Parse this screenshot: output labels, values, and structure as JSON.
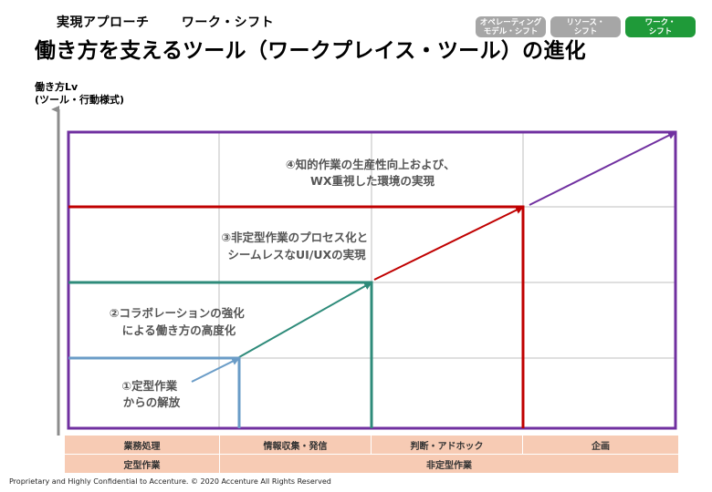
{
  "header": {
    "section": "実現アプローチ",
    "subsection": "ワーク・シフト",
    "title": "働き方を支えるツール（ワークプレイス・ツール）の進化"
  },
  "nav_pills": [
    {
      "label": "オペレーティング\nモデル・シフト",
      "active": false
    },
    {
      "label": "リソース・\nシフト",
      "active": false
    },
    {
      "label": "ワーク・\nシフト",
      "active": true
    }
  ],
  "y_axis": {
    "line1": "働き方Lv",
    "line2": "(ツール・行動様式)"
  },
  "categories": {
    "tasks": [
      "業務処理",
      "情報収集・発信",
      "判断・アドホック",
      "企画"
    ],
    "types": [
      "定型作業",
      "非定型作業"
    ]
  },
  "stages": [
    {
      "id": 1,
      "line1": "①定型作業",
      "line2": "からの解放",
      "color": "#6a9cc7"
    },
    {
      "id": 2,
      "line1": "②コラボレーションの強化",
      "line2": "による働き方の高度化",
      "color": "#2e8b7a"
    },
    {
      "id": 3,
      "line1": "③非定型作業のプロセス化と",
      "line2": "シームレスなUI/UXの実現",
      "color": "#c00000"
    },
    {
      "id": 4,
      "line1": "④知的作業の生産性向上および、",
      "line2": "WX重視した環境の実現",
      "color": "#7030a0"
    }
  ],
  "footer": "Proprietary and Highly Confidential to Accenture.   © 2020 Accenture All Rights Reserved",
  "colors": {
    "grid": "#bfbfbf",
    "axis": "#8c8c8c",
    "accent": "#1f9a39",
    "bar": "#f7cbb4"
  }
}
